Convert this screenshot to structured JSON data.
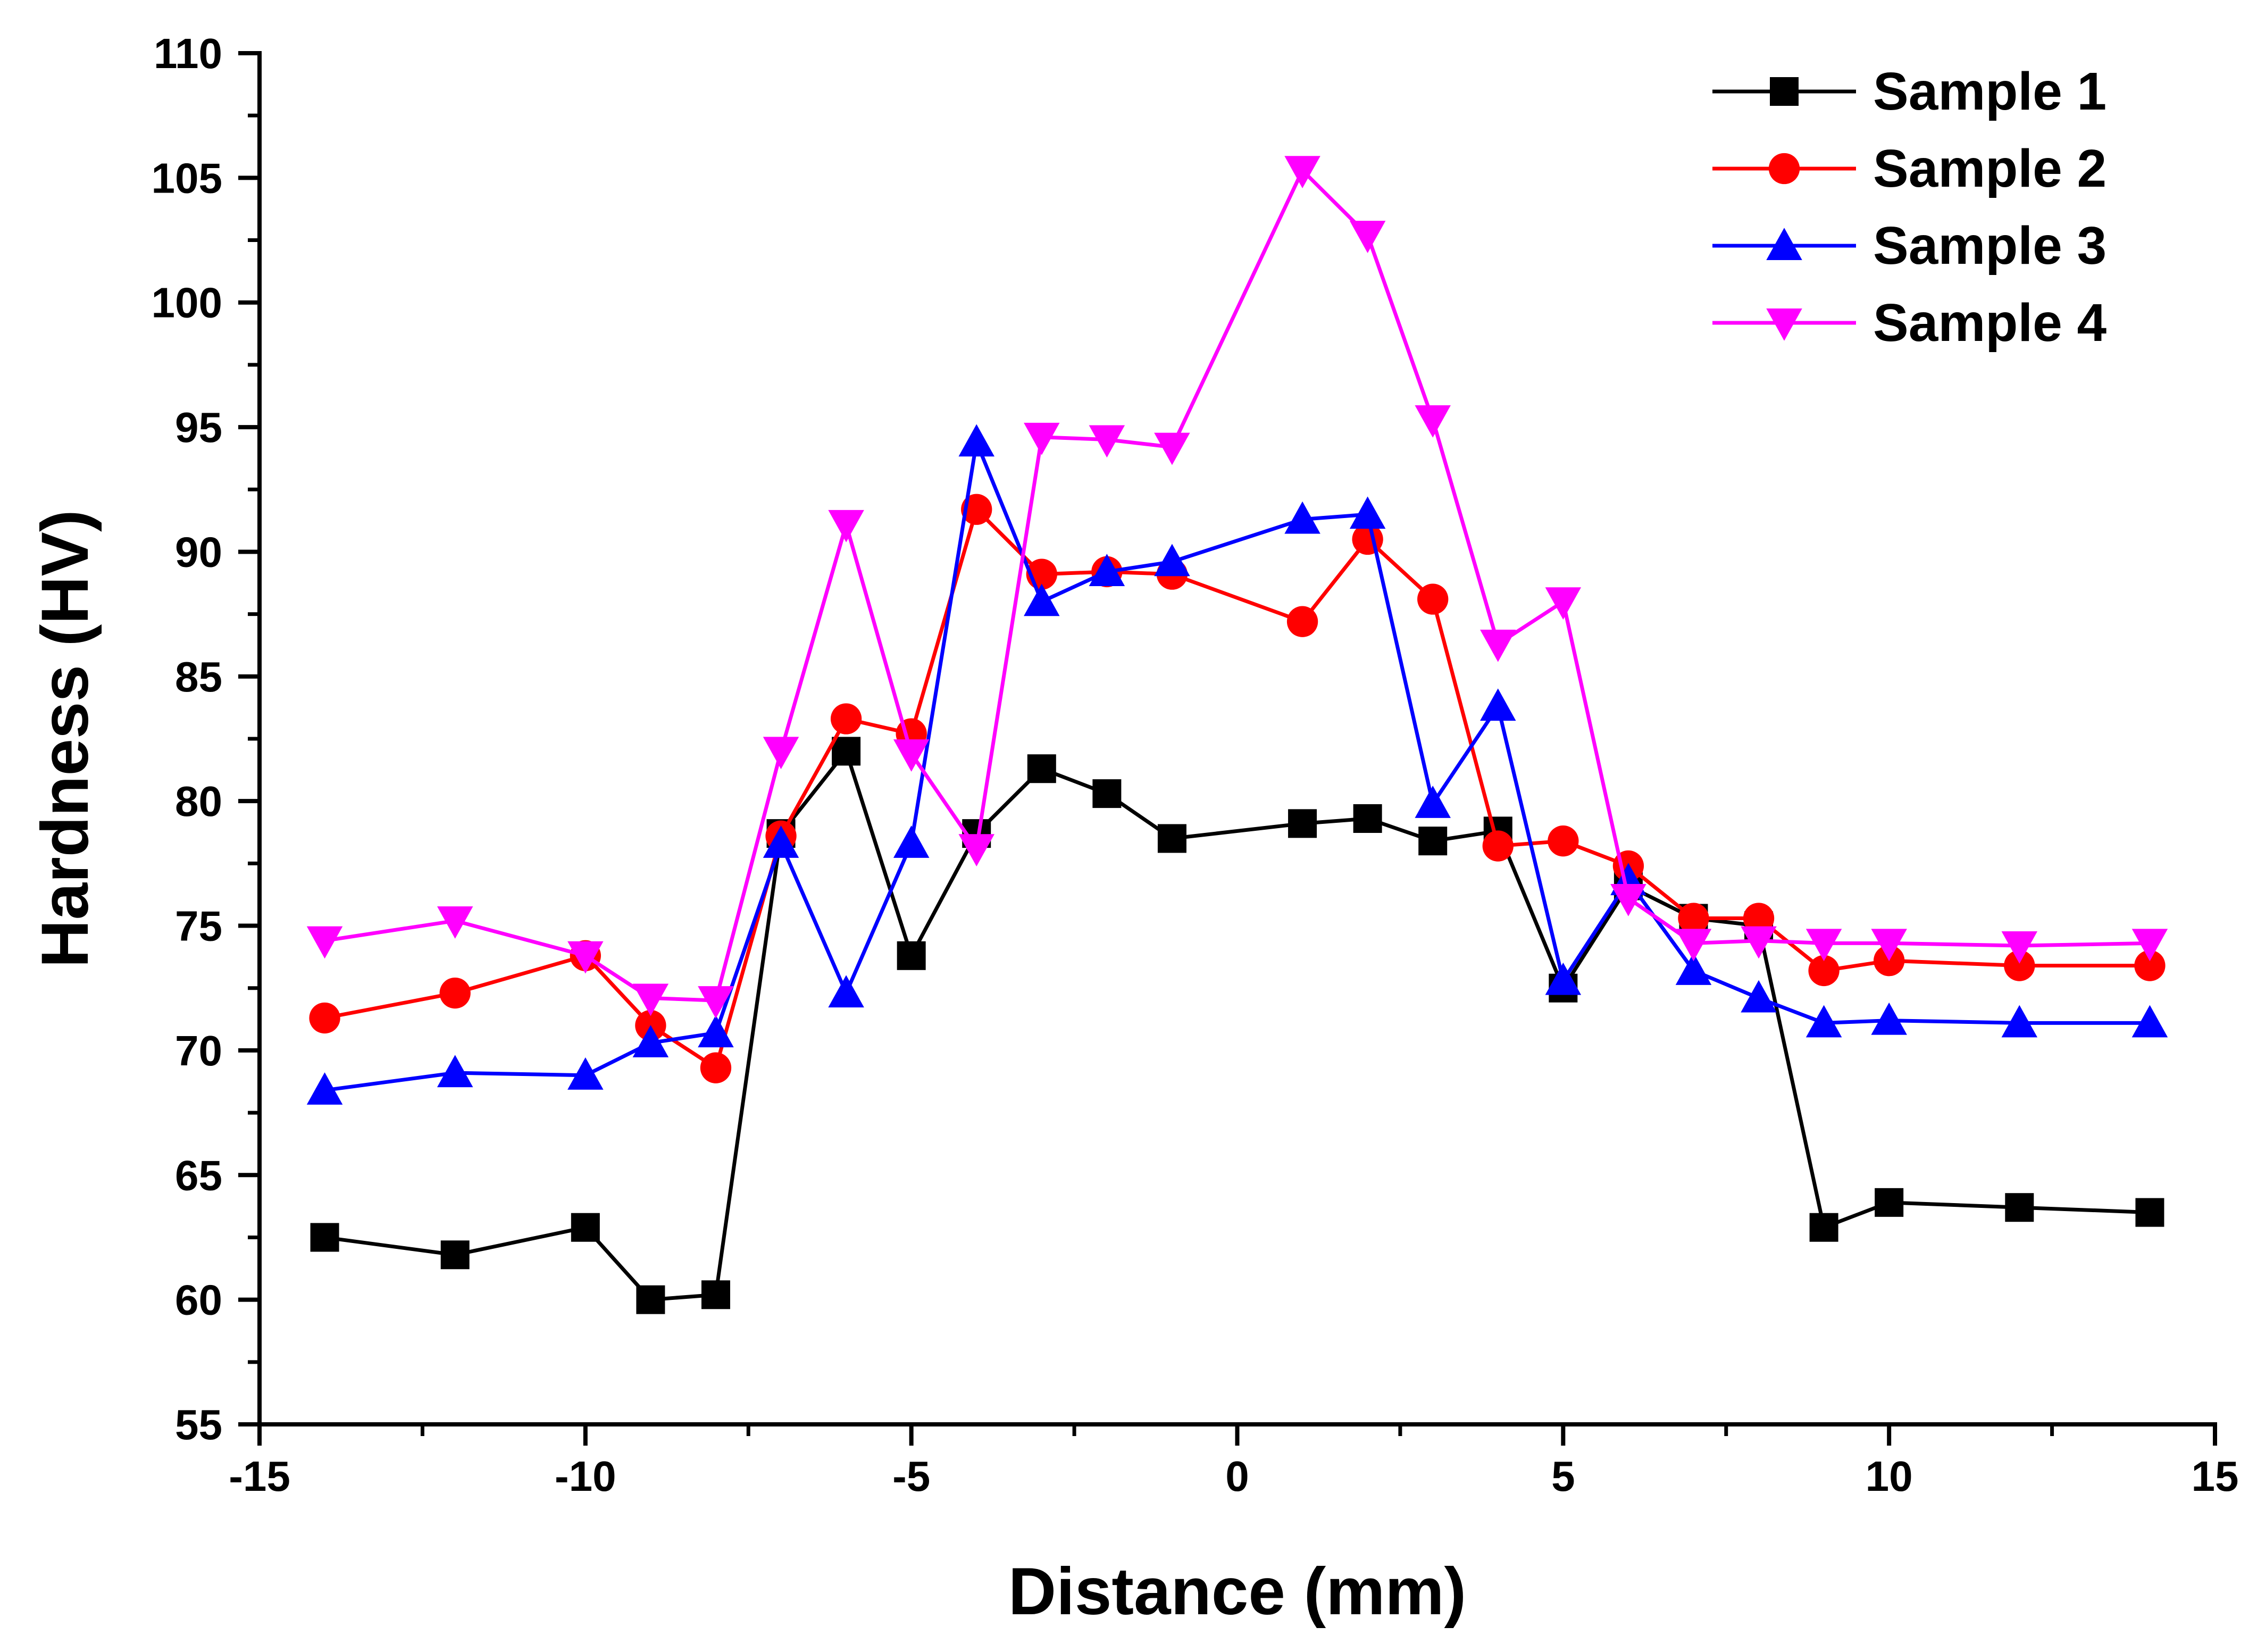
{
  "chart_data": {
    "type": "line",
    "title": "",
    "xlabel": "Distance (mm)",
    "ylabel": "Hardness (HV)",
    "xlim": [
      -15,
      15
    ],
    "ylim": [
      55,
      110
    ],
    "xticks": [
      -15,
      -10,
      -5,
      0,
      5,
      10,
      15
    ],
    "yticks": [
      55,
      60,
      65,
      70,
      75,
      80,
      85,
      90,
      95,
      100,
      105,
      110
    ],
    "legend_position": "top-right",
    "grid": false,
    "x": [
      -14,
      -12,
      -10,
      -9,
      -8,
      -7,
      -6,
      -5,
      -4,
      -3,
      -2,
      -1,
      1,
      2,
      3,
      4,
      5,
      6,
      7,
      8,
      9,
      10,
      12,
      14
    ],
    "series": [
      {
        "name": "Sample 1",
        "color": "#000000",
        "marker": "square",
        "values": [
          62.5,
          61.8,
          62.9,
          60.0,
          60.2,
          78.7,
          82.0,
          73.8,
          78.7,
          81.3,
          80.3,
          78.5,
          79.1,
          79.3,
          78.4,
          78.8,
          72.5,
          76.6,
          75.3,
          75.0,
          62.9,
          63.9,
          63.7,
          63.5
        ]
      },
      {
        "name": "Sample 2",
        "color": "#ff0000",
        "marker": "circle",
        "values": [
          71.3,
          72.3,
          73.8,
          71.0,
          69.3,
          78.6,
          83.3,
          82.7,
          91.7,
          89.1,
          89.2,
          89.1,
          87.2,
          90.5,
          88.1,
          78.2,
          78.4,
          77.4,
          75.3,
          75.3,
          73.2,
          73.6,
          73.4,
          73.4
        ]
      },
      {
        "name": "Sample 3",
        "color": "#0000ff",
        "marker": "triangle-up",
        "values": [
          68.4,
          69.1,
          69.0,
          70.3,
          70.7,
          78.3,
          72.3,
          78.3,
          94.4,
          88.0,
          89.2,
          89.6,
          91.3,
          91.5,
          79.9,
          83.8,
          72.8,
          76.8,
          73.2,
          72.1,
          71.1,
          71.2,
          71.1,
          71.1
        ]
      },
      {
        "name": "Sample 4",
        "color": "#ff00ff",
        "marker": "triangle-down",
        "values": [
          74.4,
          75.2,
          73.8,
          72.1,
          72.0,
          82.0,
          91.1,
          81.9,
          78.1,
          94.6,
          94.5,
          94.2,
          105.3,
          102.7,
          95.3,
          86.3,
          88.0,
          76.1,
          74.3,
          74.4,
          74.3,
          74.3,
          74.2,
          74.3
        ]
      }
    ]
  }
}
